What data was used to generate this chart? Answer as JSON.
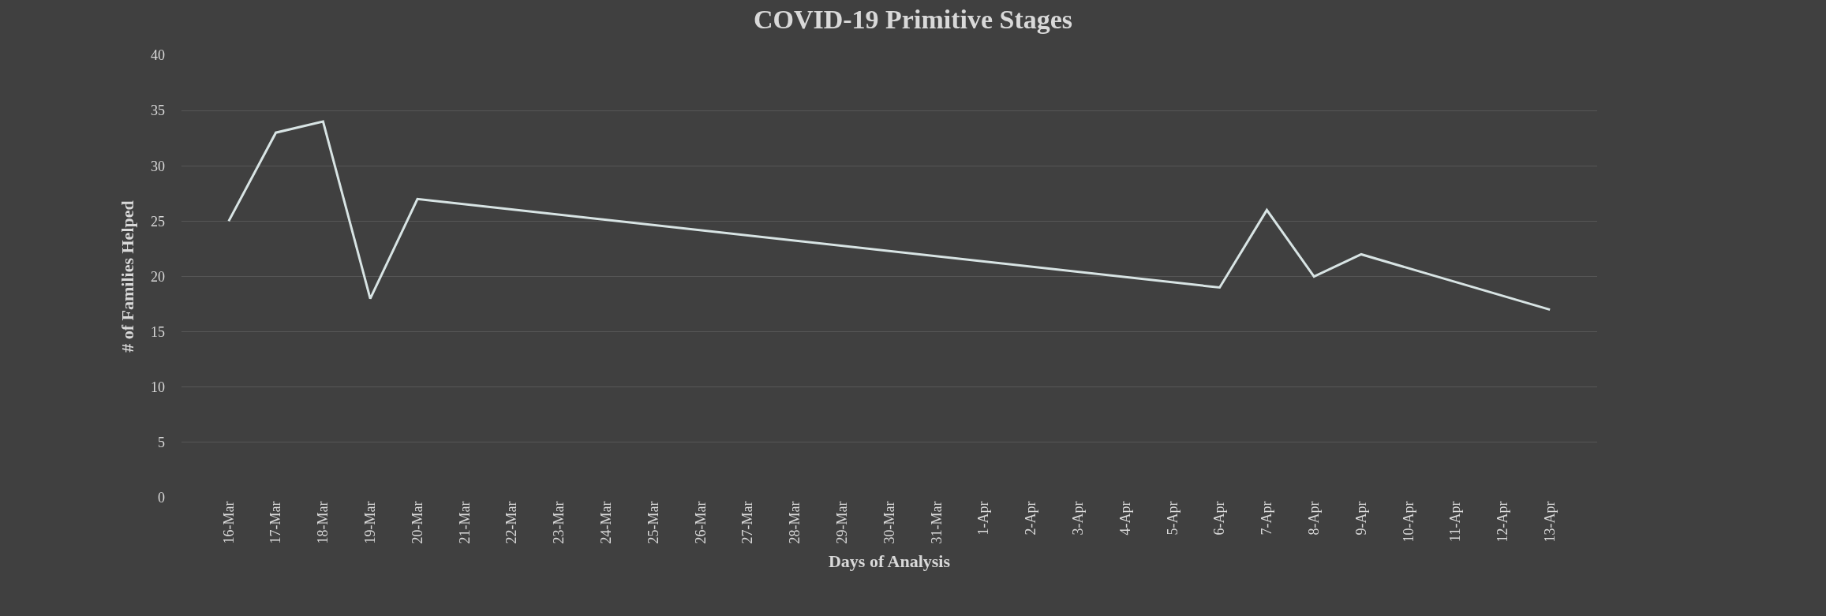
{
  "chart_data": {
    "type": "line",
    "title": "COVID-19 Primitive Stages",
    "xlabel": "Days of Analysis",
    "ylabel": "# of Families Helped",
    "x": [
      "--03-16",
      "--03-17",
      "--03-18",
      "--03-19",
      "--03-20",
      "--04-06",
      "--04-07",
      "--04-08",
      "--04-09",
      "--04-13"
    ],
    "series": [
      {
        "color": "#d8e4e4",
        "values": [
          25,
          33,
          34,
          18,
          27,
          19,
          26,
          20,
          22,
          17
        ]
      }
    ],
    "xticks": [
      {
        "value": "--03-16",
        "label": "16-Mar"
      },
      {
        "value": "--03-17",
        "label": "17-Mar"
      },
      {
        "value": "--03-18",
        "label": "18-Mar"
      },
      {
        "value": "--03-19",
        "label": "19-Mar"
      },
      {
        "value": "--03-20",
        "label": "20-Mar"
      },
      {
        "value": "--03-21",
        "label": "21-Mar"
      },
      {
        "value": "--03-22",
        "label": "22-Mar"
      },
      {
        "value": "--03-23",
        "label": "23-Mar"
      },
      {
        "value": "--03-24",
        "label": "24-Mar"
      },
      {
        "value": "--03-25",
        "label": "25-Mar"
      },
      {
        "value": "--03-26",
        "label": "26-Mar"
      },
      {
        "value": "--03-27",
        "label": "27-Mar"
      },
      {
        "value": "--03-28",
        "label": "28-Mar"
      },
      {
        "value": "--03-29",
        "label": "29-Mar"
      },
      {
        "value": "--03-30",
        "label": "30-Mar"
      },
      {
        "value": "--03-31",
        "label": "31-Mar"
      },
      {
        "value": "--04-01",
        "label": "1-Apr"
      },
      {
        "value": "--04-02",
        "label": "2-Apr"
      },
      {
        "value": "--04-03",
        "label": "3-Apr"
      },
      {
        "value": "--04-04",
        "label": "4-Apr"
      },
      {
        "value": "--04-05",
        "label": "5-Apr"
      },
      {
        "value": "--04-06",
        "label": "6-Apr"
      },
      {
        "value": "--04-07",
        "label": "7-Apr"
      },
      {
        "value": "--04-08",
        "label": "8-Apr"
      },
      {
        "value": "--04-09",
        "label": "9-Apr"
      },
      {
        "value": "--04-10",
        "label": "10-Apr"
      },
      {
        "value": "--04-11",
        "label": "11-Apr"
      },
      {
        "value": "--04-12",
        "label": "12-Apr"
      },
      {
        "value": "--04-13",
        "label": "13-Apr"
      }
    ],
    "xlim": [
      "--03-15",
      "--04-14"
    ],
    "ylim": [
      0,
      40
    ],
    "yticks": [
      0,
      5,
      10,
      15,
      20,
      25,
      30,
      35,
      40
    ],
    "grid": "y",
    "marker": "none",
    "line_style": "solid"
  }
}
